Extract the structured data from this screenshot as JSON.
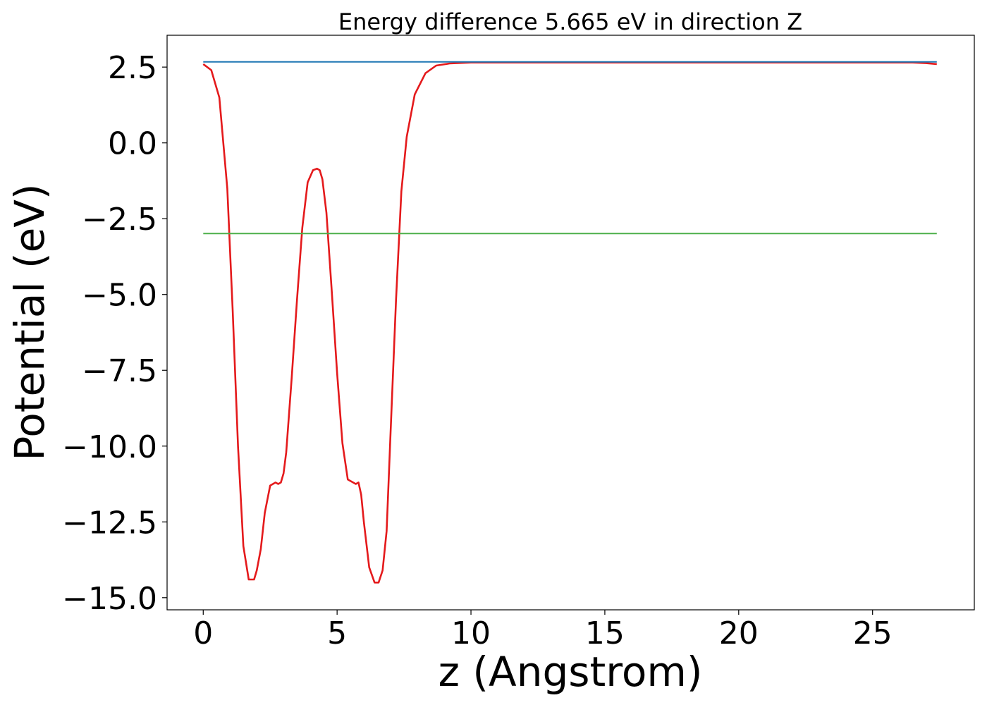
{
  "chart_data": {
    "type": "line",
    "title": "Energy difference 5.665 eV in direction Z",
    "xlabel": "z (Angstrom)",
    "ylabel": "Potential (eV)",
    "xlim": [
      -1.35,
      28.8
    ],
    "ylim": [
      -15.4,
      3.55
    ],
    "xticks": [
      0,
      5,
      10,
      15,
      20,
      25
    ],
    "xtick_labels": [
      "0",
      "5",
      "10",
      "15",
      "20",
      "25"
    ],
    "yticks": [
      2.5,
      0,
      -2.5,
      -5,
      -7.5,
      -10,
      -12.5,
      -15
    ],
    "ytick_labels": [
      "2.5",
      "0.0",
      "−2.5",
      "−5.0",
      "−7.5",
      "−10.0",
      "−12.5",
      "−15.0"
    ],
    "grid": false,
    "legend": "none",
    "series": [
      {
        "color": "#e41a1c",
        "x": [
          0,
          0.3,
          0.6,
          0.9,
          1.1,
          1.3,
          1.5,
          1.7,
          1.9,
          2.0,
          2.15,
          2.3,
          2.5,
          2.7,
          2.8,
          2.9,
          3.0,
          3.1,
          3.3,
          3.5,
          3.7,
          3.9,
          4.1,
          4.25,
          4.35,
          4.45,
          4.6,
          4.8,
          5.0,
          5.2,
          5.4,
          5.6,
          5.7,
          5.8,
          5.9,
          6.0,
          6.2,
          6.4,
          6.55,
          6.7,
          6.85,
          7.0,
          7.2,
          7.4,
          7.6,
          7.9,
          8.3,
          8.7,
          9.2,
          10.0,
          15.0,
          20.0,
          25.0,
          26.5,
          27.0,
          27.4
        ],
        "y": [
          2.6,
          2.4,
          1.5,
          -1.5,
          -5.5,
          -10.0,
          -13.3,
          -14.4,
          -14.4,
          -14.1,
          -13.4,
          -12.2,
          -11.3,
          -11.2,
          -11.25,
          -11.2,
          -10.9,
          -10.2,
          -7.8,
          -5.2,
          -2.8,
          -1.3,
          -0.9,
          -0.85,
          -0.9,
          -1.2,
          -2.3,
          -4.9,
          -7.6,
          -9.9,
          -11.1,
          -11.2,
          -11.25,
          -11.2,
          -11.6,
          -12.5,
          -14.0,
          -14.5,
          -14.5,
          -14.1,
          -12.8,
          -9.5,
          -5.2,
          -1.6,
          0.2,
          1.6,
          2.3,
          2.55,
          2.62,
          2.65,
          2.65,
          2.65,
          2.65,
          2.65,
          2.63,
          2.6
        ]
      },
      {
        "color": "#1f77b4",
        "x": [
          0,
          27.4
        ],
        "y": [
          2.67,
          2.67
        ]
      },
      {
        "color": "#4daf4a",
        "x": [
          0,
          27.4
        ],
        "y": [
          -2.99,
          -2.99
        ]
      }
    ]
  }
}
